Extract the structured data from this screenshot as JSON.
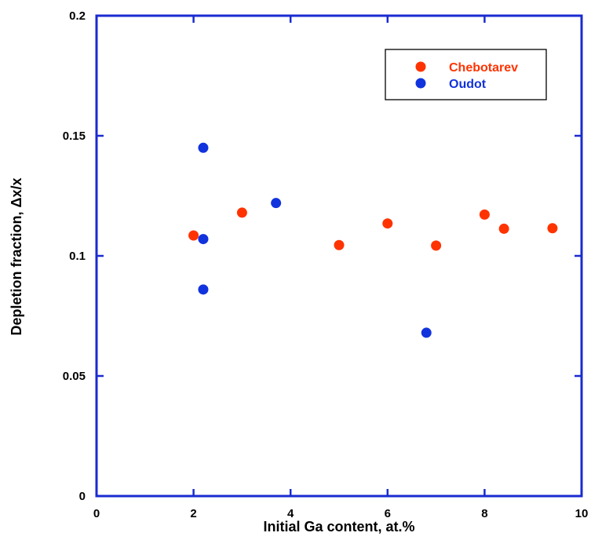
{
  "chart_data": {
    "type": "scatter",
    "xlabel": "Initial Ga content, at.%",
    "ylabel": "Depletion fraction, Δx/x",
    "xlim": [
      0,
      10
    ],
    "ylim": [
      0,
      0.2
    ],
    "xticks": [
      0,
      2,
      4,
      6,
      8,
      10
    ],
    "xtick_labels": [
      "0",
      "2",
      "4",
      "6",
      "8",
      "10"
    ],
    "yticks": [
      0,
      0.05,
      0.1,
      0.15,
      0.2
    ],
    "ytick_labels": [
      "0",
      "0.05",
      "0.1",
      "0.15",
      "0.2"
    ],
    "grid": false,
    "legend_position": "top-right",
    "series": [
      {
        "name": "Chebotarev",
        "color": "#ff3300",
        "x": [
          2.0,
          3.0,
          5.0,
          6.0,
          7.0,
          8.0,
          8.4,
          9.4
        ],
        "y": [
          0.1085,
          0.118,
          0.1045,
          0.1135,
          0.1043,
          0.1172,
          0.1113,
          0.1115
        ]
      },
      {
        "name": "Oudot",
        "color": "#1133dd",
        "x": [
          2.2,
          2.2,
          2.2,
          3.7,
          6.8
        ],
        "y": [
          0.145,
          0.107,
          0.086,
          0.122,
          0.068
        ]
      }
    ],
    "axis_color": "#1a2bd0"
  }
}
